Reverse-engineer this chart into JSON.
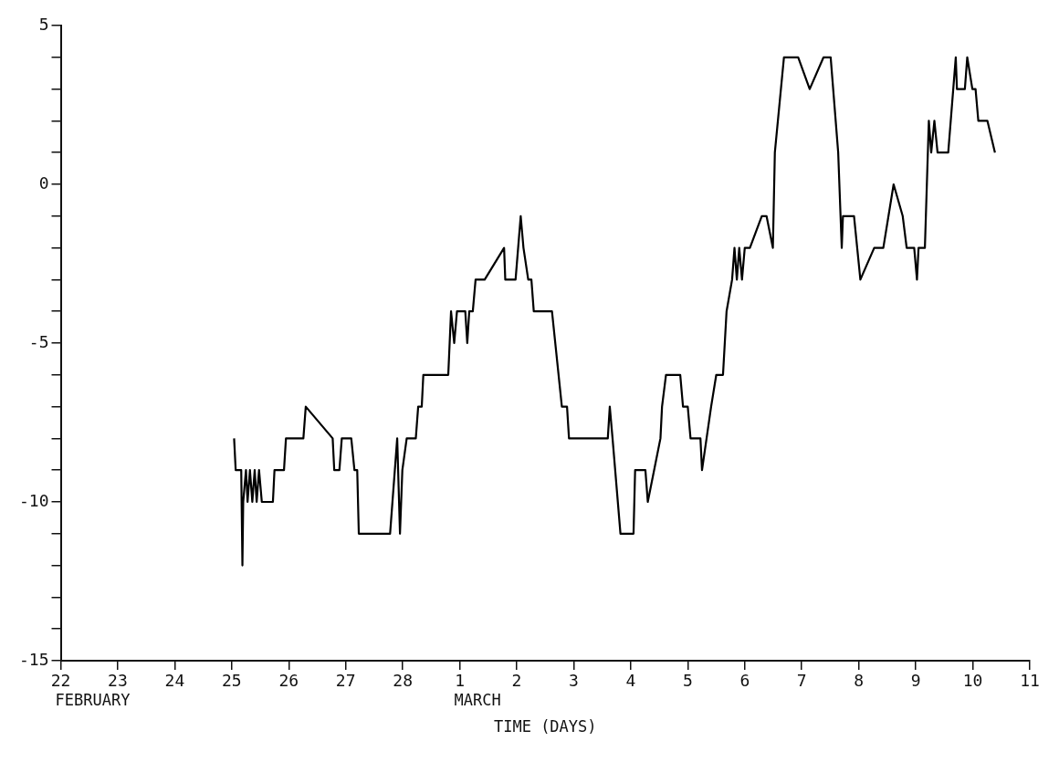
{
  "chart_data": {
    "type": "line",
    "xlabel": "TIME (DAYS)",
    "annotations": [
      "FEBRUARY",
      "MARCH"
    ],
    "x": [
      "--02-25T01:00",
      "--02-25T01:40",
      "--02-25T04:00",
      "--02-25T04:30",
      "--02-25T04:50",
      "--02-25T06:00",
      "--02-25T06:40",
      "--02-25T07:40",
      "--02-25T08:40",
      "--02-25T09:40",
      "--02-25T10:30",
      "--02-25T11:30",
      "--02-25T12:40",
      "--02-25T17:20",
      "--02-25T18:00",
      "--02-25T22:00",
      "--02-25T22:50",
      "--02-26T06:10",
      "--02-26T07:10",
      "--02-26T18:30",
      "--02-26T19:10",
      "--02-26T21:20",
      "--02-26T22:20",
      "--02-27T02:20",
      "--02-27T03:40",
      "--02-27T04:50",
      "--02-27T05:30",
      "--02-27T18:40",
      "--02-27T21:40",
      "--02-27T22:50",
      "--02-27T23:50",
      "--02-28T01:40",
      "--02-28T05:30",
      "--02-28T06:30",
      "--02-28T08:00",
      "--02-28T08:40",
      "--02-28T19:10",
      "--02-28T20:20",
      "--02-28T21:40",
      "--02-28T22:50",
      "--03-01T02:20",
      "--03-01T03:10",
      "--03-01T04:00",
      "--03-01T05:30",
      "--03-01T06:40",
      "--03-01T10:30",
      "--03-01T18:40",
      "--03-01T19:10",
      "--03-01T23:30",
      "--03-02T01:40",
      "--03-02T02:50",
      "--03-02T04:50",
      "--03-02T06:10",
      "--03-02T07:10",
      "--03-02T14:50",
      "--03-02T19:00",
      "--03-02T21:10",
      "--03-02T22:00",
      "--03-03T14:20",
      "--03-03T15:10",
      "--03-03T16:20",
      "--03-03T19:40",
      "--03-04T01:10",
      "--03-04T01:50",
      "--03-04T06:10",
      "--03-04T07:10",
      "--03-04T12:30",
      "--03-04T13:10",
      "--03-04T14:50",
      "--03-04T20:50",
      "--03-04T22:00",
      "--03-05T00:00",
      "--03-05T01:10",
      "--03-05T05:20",
      "--03-05T06:00",
      "--03-05T09:50",
      "--03-05T12:00",
      "--03-05T14:50",
      "--03-05T16:20",
      "--03-05T18:40",
      "--03-05T19:40",
      "--03-05T20:40",
      "--03-05T21:40",
      "--03-05T22:50",
      "--03-06T00:00",
      "--03-06T02:10",
      "--03-06T07:10",
      "--03-06T09:10",
      "--03-06T11:50",
      "--03-06T12:40",
      "--03-06T16:30",
      "--03-06T22:30",
      "--03-07T03:20",
      "--03-07T09:10",
      "--03-07T12:10",
      "--03-07T15:20",
      "--03-07T16:50",
      "--03-07T17:20",
      "--03-07T22:00",
      "--03-07T23:20",
      "--03-08T00:40",
      "--03-08T06:30",
      "--03-08T10:20",
      "--03-08T14:40",
      "--03-08T18:30",
      "--03-08T20:10",
      "--03-08T23:20",
      "--03-09T00:30",
      "--03-09T01:10",
      "--03-09T03:50",
      "--03-09T05:30",
      "--03-09T06:30",
      "--03-09T07:50",
      "--03-09T09:10",
      "--03-09T10:20",
      "--03-09T13:40",
      "--03-09T16:50",
      "--03-09T17:20",
      "--03-09T20:40",
      "--03-09T21:40",
      "--03-09T23:50",
      "--03-10T01:10",
      "--03-10T02:20",
      "--03-10T06:10",
      "--03-10T09:20"
    ],
    "series": [
      {
        "color": "#000000",
        "values": [
          -8,
          -9,
          -9,
          -12,
          -10,
          -9,
          -10,
          -9,
          -10,
          -9,
          -10,
          -9,
          -10,
          -10,
          -9,
          -9,
          -8,
          -8,
          -7,
          -8,
          -9,
          -9,
          -8,
          -8,
          -9,
          -9,
          -11,
          -11,
          -8,
          -11,
          -9,
          -8,
          -8,
          -7,
          -7,
          -6,
          -6,
          -4,
          -5,
          -4,
          -4,
          -5,
          -4,
          -4,
          -3,
          -3,
          -2,
          -3,
          -3,
          -1,
          -2,
          -3,
          -3,
          -4,
          -4,
          -7,
          -7,
          -8,
          -8,
          -7,
          -8,
          -11,
          -11,
          -9,
          -9,
          -10,
          -8,
          -7,
          -6,
          -6,
          -7,
          -7,
          -8,
          -8,
          -9,
          -7,
          -6,
          -6,
          -4,
          -3,
          -2,
          -3,
          -2,
          -3,
          -2,
          -2,
          -1,
          -1,
          -2,
          1,
          4,
          4,
          3,
          4,
          4,
          1,
          -2,
          -1,
          -1,
          -2,
          -3,
          -2,
          -2,
          0,
          -1,
          -2,
          -2,
          -3,
          -2,
          -2,
          2,
          1,
          2,
          1,
          1,
          1,
          4,
          3,
          3,
          4,
          3,
          3,
          2,
          2,
          1
        ]
      }
    ],
    "xlim": [
      "--02-22",
      "--03-11"
    ],
    "xticks": [
      {
        "value": "--02-22",
        "label": "22"
      },
      {
        "value": "--02-23",
        "label": "23"
      },
      {
        "value": "--02-24",
        "label": "24"
      },
      {
        "value": "--02-25",
        "label": "25"
      },
      {
        "value": "--02-26",
        "label": "26"
      },
      {
        "value": "--02-27",
        "label": "27"
      },
      {
        "value": "--02-28",
        "label": "28"
      },
      {
        "value": "--03-01",
        "label": "1"
      },
      {
        "value": "--03-02",
        "label": "2"
      },
      {
        "value": "--03-03",
        "label": "3"
      },
      {
        "value": "--03-04",
        "label": "4"
      },
      {
        "value": "--03-05",
        "label": "5"
      },
      {
        "value": "--03-06",
        "label": "6"
      },
      {
        "value": "--03-07",
        "label": "7"
      },
      {
        "value": "--03-08",
        "label": "8"
      },
      {
        "value": "--03-09",
        "label": "9"
      },
      {
        "value": "--03-10",
        "label": "10"
      },
      {
        "value": "--03-11",
        "label": "11"
      }
    ],
    "ylim": [
      -15,
      5
    ],
    "yticks": [
      -15,
      {
        "value": -14,
        "label": null
      },
      {
        "value": -13,
        "label": null
      },
      {
        "value": -12,
        "label": null
      },
      {
        "value": -11,
        "label": null
      },
      -10,
      {
        "value": -9,
        "label": null
      },
      {
        "value": -8,
        "label": null
      },
      {
        "value": -7,
        "label": null
      },
      {
        "value": -6,
        "label": null
      },
      -5,
      {
        "value": -4,
        "label": null
      },
      {
        "value": -3,
        "label": null
      },
      {
        "value": -2,
        "label": null
      },
      {
        "value": -1,
        "label": null
      },
      0,
      {
        "value": 1,
        "label": null
      },
      {
        "value": 2,
        "label": null
      },
      {
        "value": 3,
        "label": null
      },
      {
        "value": 4,
        "label": null
      },
      5
    ],
    "grid": false,
    "legend": false,
    "marker": "none",
    "line_style": "solid"
  }
}
